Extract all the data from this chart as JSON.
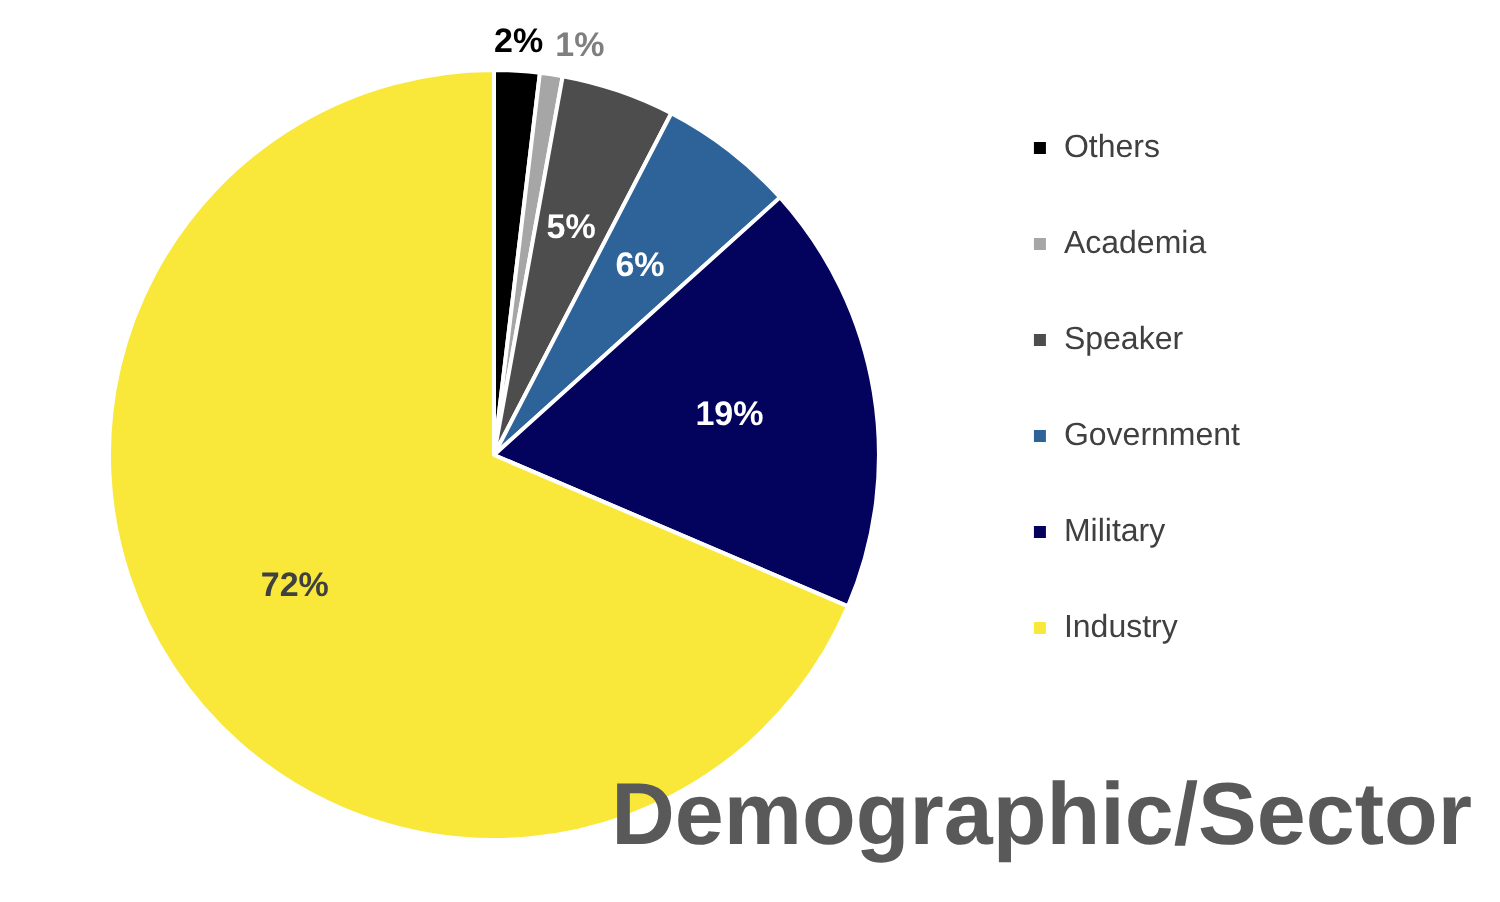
{
  "chart_data": {
    "type": "pie",
    "title": "Demographic/Sector",
    "categories": [
      "Others",
      "Academia",
      "Speaker",
      "Government",
      "Military",
      "Industry"
    ],
    "values": [
      2,
      1,
      5,
      6,
      19,
      72
    ],
    "value_labels": [
      "2%",
      "1%",
      "5%",
      "6%",
      "19%",
      "72%"
    ],
    "colors": [
      "#000000",
      "#a6a6a6",
      "#4d4d4d",
      "#2e6399",
      "#03035e",
      "#f9e83a"
    ],
    "legend": "right"
  }
}
